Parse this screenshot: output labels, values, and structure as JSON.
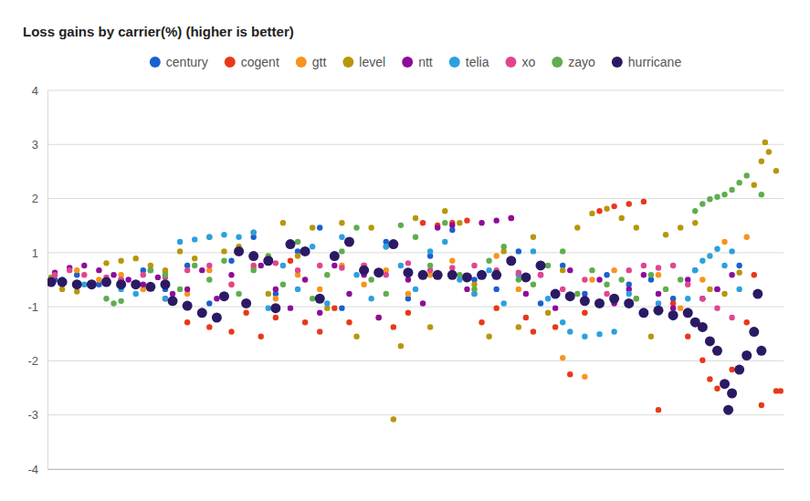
{
  "chart_data": {
    "type": "scatter",
    "title": "Loss gains by carrier(%) (higher is better)",
    "legend": "top",
    "grid": true,
    "tick_labels": "y",
    "xlim": [
      0,
      100
    ],
    "ylim": [
      -4,
      4
    ],
    "yticks": [
      4,
      {
        "value": 2.857,
        "label": "3"
      },
      {
        "value": 1.714,
        "label": "2"
      },
      {
        "value": 0.571,
        "label": "1"
      },
      {
        "value": -0.571,
        "label": "-1"
      },
      {
        "value": -1.714,
        "label": "-2"
      },
      {
        "value": -2.857,
        "label": "-3"
      },
      -4
    ],
    "series": [
      {
        "name": "century",
        "color": "#1a5fd0",
        "marker": "circle",
        "x": [
          1,
          4,
          7,
          10,
          13,
          16,
          19,
          22,
          25,
          28,
          31,
          34,
          37,
          40,
          43,
          46,
          49,
          52,
          55,
          58,
          61,
          64,
          67,
          70,
          73,
          76,
          79,
          82,
          85,
          88,
          91,
          94
        ],
        "values": [
          0.0,
          0.1,
          -0.1,
          0.0,
          0.2,
          -0.2,
          0.3,
          -0.5,
          0.4,
          0.9,
          -0.3,
          0.6,
          1.1,
          -0.6,
          0.2,
          0.8,
          -0.4,
          0.5,
          1.05,
          0.0,
          -0.2,
          0.6,
          -0.5,
          0.3,
          -0.3,
          0.1,
          -0.1,
          0.0,
          -0.4,
          0.2,
          -0.2,
          0.3
        ]
      },
      {
        "name": "cogent",
        "color": "#e8381a",
        "marker": "circle",
        "x": [
          16,
          19,
          22,
          25,
          27,
          29,
          31,
          33,
          35,
          37,
          39,
          41,
          43,
          45,
          47,
          49,
          51,
          53,
          55,
          57,
          59,
          61,
          63,
          65,
          66,
          69,
          71,
          73,
          75,
          77,
          79,
          81,
          83,
          85,
          87,
          89,
          90,
          91,
          93,
          95,
          96,
          97,
          99,
          99.6
        ],
        "values": [
          -0.4,
          -0.9,
          -1.0,
          -1.1,
          -0.7,
          -1.2,
          -0.8,
          0.4,
          -0.9,
          -1.1,
          -0.6,
          -0.9,
          0.3,
          -0.8,
          -1.0,
          -0.7,
          1.2,
          1.15,
          1.2,
          1.25,
          -0.9,
          -0.6,
          1.3,
          -0.8,
          -1.1,
          -1.0,
          -2.0,
          -0.7,
          1.45,
          1.55,
          1.6,
          1.65,
          -2.75,
          -0.5,
          -1.2,
          -1.7,
          -2.1,
          -2.3,
          -1.9,
          -0.9,
          0.1,
          -2.65,
          -2.35,
          -2.35
        ]
      },
      {
        "name": "gtt",
        "color": "#f7941d",
        "marker": "circle",
        "x": [
          1,
          4,
          7,
          10,
          13,
          16,
          19,
          22,
          25,
          28,
          31,
          34,
          37,
          40,
          43,
          46,
          49,
          52,
          55,
          58,
          61,
          64,
          67,
          70,
          73,
          74,
          77,
          80,
          83,
          86,
          89,
          92,
          95
        ],
        "values": [
          0.1,
          0.2,
          0.0,
          0.1,
          -0.2,
          0.15,
          -0.3,
          0.2,
          -0.1,
          0.25,
          -0.4,
          0.1,
          -0.2,
          0.3,
          -0.1,
          0.2,
          -0.3,
          0.1,
          0.4,
          -0.3,
          0.5,
          -0.2,
          0.3,
          -1.65,
          -2.05,
          0.0,
          0.2,
          -0.4,
          0.1,
          -0.6,
          0.0,
          0.8,
          0.9
        ]
      },
      {
        "name": "level",
        "color": "#b8960c",
        "marker": "circle",
        "x": [
          0.5,
          2,
          4,
          6,
          8,
          10,
          12,
          14,
          16,
          18,
          20,
          22,
          24,
          26,
          28,
          30,
          32,
          34,
          36,
          38,
          40,
          42,
          44,
          46,
          47,
          48,
          50,
          52,
          54,
          56,
          58,
          60,
          62,
          64,
          66,
          68,
          70,
          72,
          74,
          76,
          78,
          80,
          82,
          84,
          86,
          88,
          90,
          92,
          94,
          96,
          97,
          97.5,
          98,
          99
        ],
        "values": [
          0.05,
          -0.2,
          -0.25,
          -0.1,
          0.35,
          0.4,
          0.45,
          0.3,
          0.2,
          0.6,
          0.45,
          0.9,
          0.6,
          0.7,
          1.0,
          -0.3,
          1.2,
          0.5,
          1.1,
          -0.6,
          1.2,
          -1.2,
          1.1,
          0.7,
          -2.95,
          -1.4,
          1.3,
          -1.0,
          1.45,
          1.2,
          -0.1,
          -1.2,
          0.6,
          -1.0,
          0.9,
          -0.7,
          0.2,
          1.1,
          1.4,
          1.5,
          1.3,
          1.1,
          -1.2,
          0.95,
          1.1,
          1.2,
          -0.2,
          -0.3,
          0.15,
          2.0,
          2.5,
          2.9,
          2.7,
          2.3
        ]
      },
      {
        "name": "ntt",
        "color": "#8e0c9a",
        "marker": "circle",
        "x": [
          0.5,
          1,
          3,
          5,
          7,
          9,
          11,
          13,
          15,
          17,
          19,
          21,
          23,
          25,
          27,
          29,
          31,
          33,
          35,
          37,
          39,
          41,
          43,
          45,
          47,
          49,
          51,
          53,
          55,
          57,
          59,
          61,
          63,
          65,
          67,
          69,
          71,
          73,
          75,
          77,
          79,
          81,
          83,
          85,
          87,
          89,
          91,
          93
        ],
        "values": [
          -0.05,
          0.15,
          0.25,
          0.3,
          0.2,
          0.1,
          0.0,
          -0.1,
          0.05,
          -0.3,
          -0.2,
          0.2,
          -0.4,
          0.1,
          -0.5,
          0.3,
          -0.2,
          -0.6,
          0.0,
          -0.7,
          0.3,
          -0.3,
          0.1,
          -0.8,
          0.75,
          0.0,
          -0.5,
          1.1,
          1.15,
          -0.2,
          1.2,
          1.25,
          1.3,
          -0.3,
          0.1,
          -0.6,
          0.2,
          -0.4,
          0.0,
          -0.5,
          -0.2,
          0.1,
          -0.3,
          -0.6,
          0.0,
          -0.4,
          -0.2,
          0.1
        ]
      },
      {
        "name": "telia",
        "color": "#2ba0e0",
        "marker": "circle",
        "x": [
          2,
          5,
          8,
          10,
          12,
          14,
          16,
          18,
          20,
          22,
          24,
          26,
          28,
          30,
          32,
          34,
          36,
          38,
          40,
          42,
          44,
          46,
          48,
          50,
          52,
          54,
          56,
          58,
          60,
          62,
          64,
          66,
          68,
          70,
          71,
          73,
          75,
          77,
          79,
          81,
          83,
          85,
          87,
          88,
          89,
          90,
          91,
          92,
          93,
          94
        ],
        "values": [
          0.0,
          -0.1,
          0.0,
          -0.2,
          -0.3,
          0.2,
          -0.4,
          0.8,
          0.85,
          0.9,
          0.95,
          0.9,
          1.0,
          -0.6,
          0.3,
          -0.2,
          0.7,
          -0.5,
          0.9,
          0.1,
          -0.4,
          0.7,
          0.3,
          -0.2,
          0.6,
          0.8,
          0.0,
          -0.3,
          0.2,
          -0.5,
          0.1,
          0.6,
          -0.4,
          -0.9,
          -1.1,
          -1.2,
          -1.15,
          -1.1,
          -0.3,
          -0.7,
          -0.5,
          -0.8,
          -0.4,
          0.2,
          0.4,
          0.5,
          0.65,
          0.3,
          0.6,
          -0.2
        ]
      },
      {
        "name": "xo",
        "color": "#e0468f",
        "marker": "circle",
        "x": [
          1,
          3,
          5,
          8,
          10,
          13,
          16,
          19,
          22,
          25,
          28,
          31,
          34,
          37,
          40,
          43,
          46,
          49,
          52,
          55,
          58,
          61,
          64,
          67,
          70,
          73,
          76,
          79,
          81,
          83,
          85,
          87,
          89,
          91,
          93
        ],
        "values": [
          0.1,
          0.2,
          0.1,
          0.05,
          0.0,
          0.1,
          0.05,
          0.2,
          0.3,
          -0.1,
          0.3,
          0.35,
          0.2,
          0.3,
          0.25,
          0.3,
          0.1,
          0.35,
          0.2,
          0.25,
          0.3,
          0.2,
          0.15,
          0.1,
          -0.2,
          0.0,
          -0.3,
          0.2,
          0.3,
          0.25,
          0.3,
          -0.1,
          -0.4,
          -0.6,
          -0.8
        ]
      },
      {
        "name": "zayo",
        "color": "#5fad4e",
        "marker": "circle",
        "x": [
          8,
          9,
          10,
          12,
          14,
          16,
          18,
          20,
          22,
          24,
          26,
          28,
          30,
          32,
          34,
          36,
          38,
          40,
          42,
          44,
          46,
          48,
          50,
          52,
          54,
          56,
          58,
          60,
          62,
          64,
          66,
          68,
          70,
          72,
          74,
          76,
          78,
          80,
          82,
          84,
          86,
          88,
          89,
          90,
          91,
          92,
          93,
          94,
          95,
          97
        ],
        "values": [
          -0.4,
          -0.5,
          -0.45,
          -0.1,
          0.2,
          0.1,
          -0.2,
          0.3,
          0.0,
          0.4,
          -0.3,
          0.2,
          0.5,
          -0.1,
          0.8,
          -0.4,
          0.1,
          0.6,
          1.1,
          0.0,
          -0.3,
          1.15,
          0.9,
          0.3,
          1.2,
          0.1,
          -0.2,
          0.4,
          0.7,
          0.0,
          -0.1,
          0.3,
          0.6,
          -0.3,
          0.2,
          -0.1,
          0.0,
          -0.4,
          0.1,
          -0.2,
          0.0,
          1.45,
          1.6,
          1.7,
          1.75,
          1.8,
          1.9,
          2.05,
          2.2,
          1.8
        ]
      },
      {
        "name": "hurricane",
        "color": "#2b1a63",
        "marker": "large-circle",
        "x": [
          0.5,
          2,
          4,
          6,
          8,
          10,
          12,
          14,
          16,
          17,
          19,
          21,
          23,
          24,
          26,
          27,
          28,
          30,
          31,
          33,
          35,
          37,
          39,
          41,
          43,
          45,
          47,
          49,
          51,
          53,
          55,
          57,
          59,
          61,
          63,
          65,
          67,
          69,
          71,
          73,
          75,
          77,
          79,
          81,
          83,
          85,
          87,
          88,
          89,
          90,
          91,
          92,
          92.5,
          93,
          94,
          95,
          96,
          96.5,
          97
        ],
        "values": [
          -0.05,
          -0.05,
          -0.1,
          -0.1,
          -0.05,
          -0.1,
          -0.1,
          -0.15,
          -0.1,
          -0.45,
          -0.55,
          -0.7,
          -0.8,
          -0.35,
          0.6,
          -0.5,
          0.5,
          0.4,
          -0.6,
          0.75,
          0.6,
          -0.4,
          0.5,
          0.8,
          0.2,
          0.15,
          0.75,
          0.15,
          0.1,
          0.1,
          0.1,
          0.05,
          0.1,
          0.1,
          0.4,
          0.05,
          0.3,
          -0.3,
          -0.35,
          -0.45,
          -0.5,
          -0.4,
          -0.5,
          -0.7,
          -0.65,
          -0.75,
          -0.7,
          -0.9,
          -1.0,
          -1.3,
          -1.5,
          -2.2,
          -2.75,
          -2.4,
          -1.9,
          -1.6,
          -1.1,
          -0.3,
          -1.5
        ]
      }
    ]
  }
}
